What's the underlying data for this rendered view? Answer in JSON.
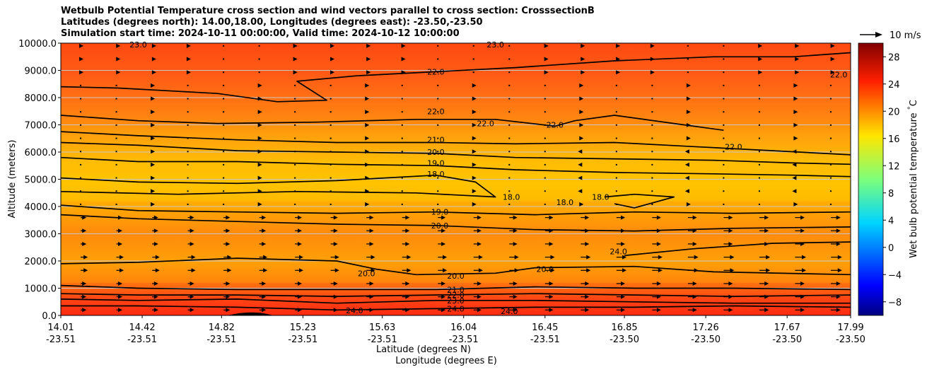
{
  "title_lines": [
    "Wetbulb Potential Temperature cross section and wind vectors parallel to cross section: CrosssectionB",
    "Latitudes (degrees north): 14.00,18.00, Longitudes (degrees east): -23.50,-23.50",
    "Simulation start time: 2024-10-11 00:00:00, Valid time: 2024-10-12 10:00:00"
  ],
  "chart_data": {
    "type": "heatmap",
    "ylabel": "Altitude (meters)",
    "xlabel_line1": "Latitude (degrees N)",
    "xlabel_line2": "Longitude (degrees E)",
    "ylim": [
      0,
      10000
    ],
    "yticks": [
      "0.0",
      "1000.0",
      "2000.0",
      "3000.0",
      "4000.0",
      "5000.0",
      "6000.0",
      "7000.0",
      "8000.0",
      "9000.0",
      "10000.0"
    ],
    "ytick_values": [
      0,
      1000,
      2000,
      3000,
      4000,
      5000,
      6000,
      7000,
      8000,
      9000,
      10000
    ],
    "xticks_lat": [
      "14.01",
      "14.42",
      "14.82",
      "15.23",
      "15.63",
      "16.04",
      "16.45",
      "16.85",
      "17.26",
      "17.67",
      "17.99"
    ],
    "xticks_lon": [
      "-23.51",
      "-23.51",
      "-23.51",
      "-23.51",
      "-23.51",
      "-23.51",
      "-23.51",
      "-23.50",
      "-23.50",
      "-23.50",
      "-23.50"
    ],
    "xlim": [
      14.01,
      17.99
    ],
    "grid": "horizontal",
    "colorbar": {
      "label": "Wet bulb potential temperature $^\\circ$C",
      "range": [
        -10,
        30
      ],
      "ticks": [
        "-8",
        "-4",
        "0",
        "4",
        "8",
        "12",
        "16",
        "20",
        "24",
        "28"
      ],
      "tick_values": [
        -8,
        -4,
        0,
        4,
        8,
        12,
        16,
        20,
        24,
        28
      ]
    },
    "wind_key": "10 m/s",
    "contour_levels": [
      18.0,
      19.0,
      20.0,
      21.0,
      22.0,
      23.0,
      24.0
    ],
    "contour_labels": [
      {
        "text": "22.0",
        "lat": 15.9,
        "alt": 8950
      },
      {
        "text": "22.0",
        "lat": 15.9,
        "alt": 7500
      },
      {
        "text": "22.0",
        "lat": 16.15,
        "alt": 7050
      },
      {
        "text": "22.0",
        "lat": 16.5,
        "alt": 7000
      },
      {
        "text": "22.0",
        "lat": 17.4,
        "alt": 6200
      },
      {
        "text": "22.0",
        "lat": 17.93,
        "alt": 8850
      },
      {
        "text": "21.0",
        "lat": 15.9,
        "alt": 6450
      },
      {
        "text": "20.0",
        "lat": 15.9,
        "alt": 6000
      },
      {
        "text": "19.0",
        "lat": 15.9,
        "alt": 5600
      },
      {
        "text": "18.0",
        "lat": 15.9,
        "alt": 5200
      },
      {
        "text": "18.0",
        "lat": 16.28,
        "alt": 4350
      },
      {
        "text": "18.0",
        "lat": 16.55,
        "alt": 4150
      },
      {
        "text": "18.0",
        "lat": 16.73,
        "alt": 4350
      },
      {
        "text": "19.0",
        "lat": 15.92,
        "alt": 3800
      },
      {
        "text": "20.0",
        "lat": 15.92,
        "alt": 3300
      },
      {
        "text": "20.0",
        "lat": 15.55,
        "alt": 1550
      },
      {
        "text": "20.0",
        "lat": 16.0,
        "alt": 1450
      },
      {
        "text": "20.0",
        "lat": 16.45,
        "alt": 1700
      },
      {
        "text": "24.0",
        "lat": 16.82,
        "alt": 2350
      },
      {
        "text": "21.0",
        "lat": 16.0,
        "alt": 950
      },
      {
        "text": "22.0",
        "lat": 16.0,
        "alt": 750
      },
      {
        "text": "23.0",
        "lat": 16.0,
        "alt": 550
      },
      {
        "text": "24.0",
        "lat": 16.0,
        "alt": 250
      },
      {
        "text": "24.0",
        "lat": 15.49,
        "alt": 180
      },
      {
        "text": "24.0",
        "lat": 16.27,
        "alt": 150
      },
      {
        "text": "23.0",
        "lat": 14.4,
        "alt": 9950
      },
      {
        "text": "23.0",
        "lat": 16.2,
        "alt": 9950
      }
    ]
  }
}
